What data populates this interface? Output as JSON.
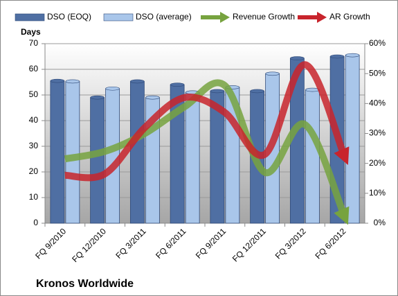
{
  "chart_data": {
    "type": "bar_line",
    "title": "Kronos Worldwide",
    "y_label": "Days",
    "categories": [
      "FQ 9/2010",
      "FQ 12/2010",
      "FQ 3/2011",
      "FQ 6/2011",
      "FQ 9/2011",
      "FQ 12/2011",
      "FQ 3/2012",
      "FQ 6/2012"
    ],
    "series": [
      {
        "name": "DSO (EOQ)",
        "color": "#4f6fa3",
        "kind": "bar",
        "values": [
          55.5,
          49,
          55.3,
          54,
          51.5,
          51.5,
          64.3,
          65
        ]
      },
      {
        "name": "DSO (average)",
        "color": "#a9c6ea",
        "kind": "bar",
        "values": [
          55.3,
          52.5,
          49,
          51,
          53,
          58.3,
          52,
          65.5
        ]
      },
      {
        "name": "Revenue Growth",
        "color": "#77a33f",
        "kind": "line",
        "axis": "y2",
        "values": [
          21.5,
          24,
          30,
          39,
          46,
          17,
          33,
          2
        ]
      },
      {
        "name": "AR Growth",
        "color": "#c8242c",
        "kind": "line",
        "axis": "y2",
        "values": [
          16,
          16.5,
          32,
          42,
          37,
          23,
          53,
          22
        ]
      }
    ],
    "ylim": [
      0,
      70
    ],
    "yticks": [
      0,
      10,
      20,
      30,
      40,
      50,
      60,
      70
    ],
    "y2lim": [
      0,
      60
    ],
    "y2ticks": [
      {
        "value": 0,
        "label": "0%"
      },
      {
        "value": 10,
        "label": "10%"
      },
      {
        "value": 20,
        "label": "20%"
      },
      {
        "value": 30,
        "label": "30%"
      },
      {
        "value": 40,
        "label": "40%"
      },
      {
        "value": 50,
        "label": "50%"
      },
      {
        "value": 60,
        "label": "60%"
      }
    ],
    "grid": true
  }
}
